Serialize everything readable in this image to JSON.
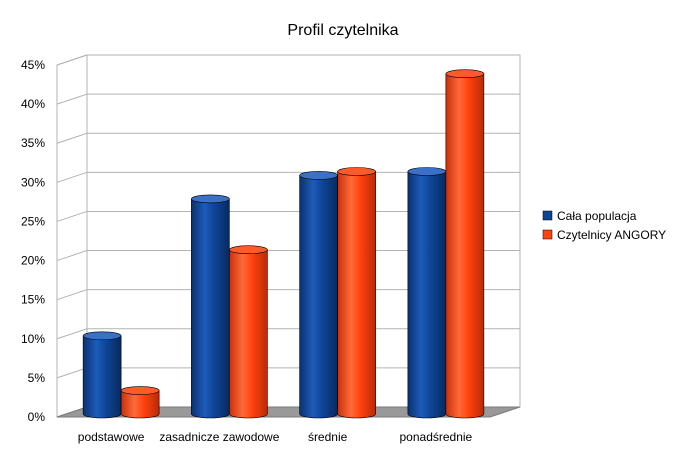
{
  "chart_data": {
    "type": "bar",
    "style": "3d-cylinder",
    "title": "Profil czytelnika",
    "xlabel": "",
    "ylabel": "",
    "categories": [
      "podstawowe",
      "zasadnicze zawodowe",
      "średnie",
      "ponadśrednie"
    ],
    "series": [
      {
        "name": "Cała populacja",
        "color": "#0e4595",
        "values": [
          10,
          27.5,
          30.5,
          31
        ]
      },
      {
        "name": "Czytelnicy ANGORY",
        "color": "#ff420e",
        "values": [
          3,
          21,
          31,
          43.5
        ]
      }
    ],
    "ylim": [
      0,
      45
    ],
    "yticks": [
      0,
      5,
      10,
      15,
      20,
      25,
      30,
      35,
      40,
      45
    ],
    "ytick_labels": [
      "0%",
      "5%",
      "10%",
      "15%",
      "20%",
      "25%",
      "30%",
      "35%",
      "40%",
      "45%"
    ],
    "grid": true,
    "legend_position": "right"
  }
}
